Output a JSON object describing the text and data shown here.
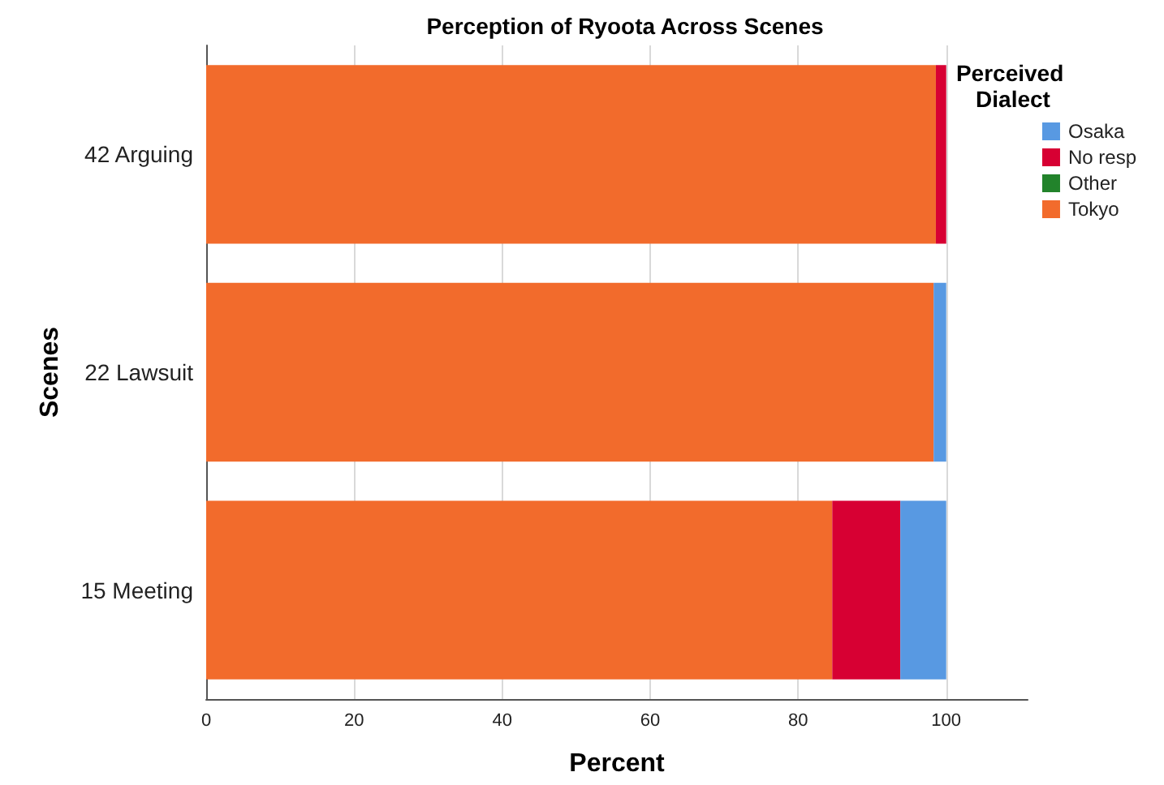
{
  "chart_data": {
    "type": "bar",
    "orientation": "horizontal",
    "stacked": true,
    "title": "Perception of Ryoota Across Scenes",
    "xlabel": "Percent",
    "ylabel": "Scenes",
    "legend_title": "Perceived Dialect",
    "legend": "right",
    "categories": [
      "42 Arguing",
      "22 Lawsuit",
      "15 Meeting"
    ],
    "series": [
      {
        "name": "Tokyo",
        "color": "#f26b2c",
        "values": [
          98.6,
          98.3,
          84.6
        ]
      },
      {
        "name": "Other",
        "color": "#22832b",
        "values": [
          0,
          0,
          0
        ]
      },
      {
        "name": "No resp",
        "color": "#d70033",
        "values": [
          1.4,
          0,
          9.2
        ]
      },
      {
        "name": "Osaka",
        "color": "#5899e2",
        "values": [
          0,
          1.7,
          6.2
        ]
      }
    ],
    "xlim": [
      0,
      111
    ],
    "xticks": [
      0,
      20,
      40,
      60,
      80,
      100
    ],
    "grid": "x"
  }
}
